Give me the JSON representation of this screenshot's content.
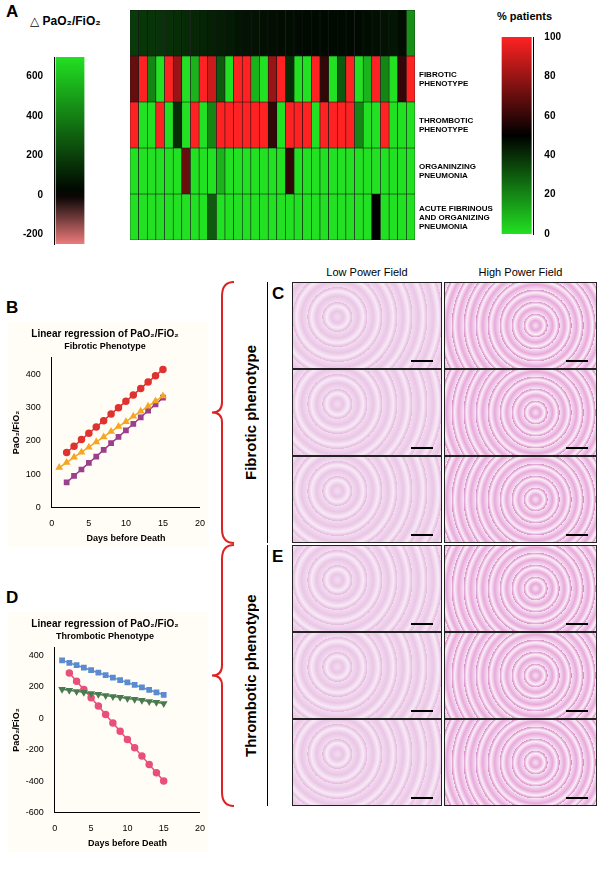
{
  "chart_data": [
    {
      "type": "heatmap",
      "panel": "A",
      "delta_row": {
        "label": "△ PaO₂/FiO₂",
        "values": [
          180,
          170,
          165,
          160,
          150,
          140,
          130,
          120,
          110,
          100,
          90,
          80,
          70,
          60,
          55,
          50,
          45,
          40,
          40,
          35,
          30,
          30,
          30,
          30,
          30,
          30,
          30,
          40,
          50,
          60,
          70,
          40,
          450
        ]
      },
      "rows": [
        {
          "label": "FIBROTIC PHENOTYPE",
          "values": [
            70,
            100,
            20,
            0,
            100,
            80,
            0,
            10,
            100,
            90,
            30,
            0,
            100,
            100,
            10,
            0,
            80,
            100,
            40,
            0,
            0,
            100,
            60,
            0,
            30,
            100,
            0,
            10,
            100,
            20,
            0,
            60,
            100
          ]
        },
        {
          "label": "THROMBOTIC PHENOTYPE",
          "values": [
            100,
            0,
            0,
            100,
            0,
            40,
            0,
            100,
            0,
            20,
            100,
            100,
            100,
            100,
            100,
            100,
            60,
            0,
            100,
            100,
            100,
            0,
            100,
            100,
            100,
            100,
            20,
            0,
            0,
            100,
            0,
            0,
            0
          ]
        },
        {
          "label": "ORGANINZING PNEUMONIA",
          "values": [
            0,
            0,
            0,
            0,
            0,
            0,
            70,
            0,
            0,
            0,
            10,
            0,
            0,
            0,
            0,
            0,
            0,
            0,
            60,
            0,
            0,
            0,
            0,
            0,
            0,
            0,
            0,
            0,
            0,
            0,
            0,
            0,
            0
          ]
        },
        {
          "label": "ACUTE FIBRINOUS AND ORGANIZING PNEUMONIA",
          "values": [
            0,
            0,
            0,
            0,
            0,
            0,
            0,
            0,
            0,
            30,
            0,
            0,
            0,
            0,
            0,
            0,
            0,
            0,
            0,
            0,
            0,
            0,
            0,
            0,
            0,
            0,
            0,
            0,
            50,
            0,
            0,
            0,
            0
          ]
        }
      ],
      "delta_colorbar": {
        "range": [
          -250,
          700
        ],
        "ticks": [
          600,
          400,
          200,
          0,
          -200
        ],
        "center": 0
      },
      "percent_colorbar": {
        "title": "% patients",
        "range": [
          0,
          100
        ],
        "ticks": [
          100,
          80,
          60,
          40,
          20,
          0
        ],
        "center": 50
      }
    },
    {
      "type": "line",
      "panel": "B",
      "title": "Linear regression of PaO₂/FiO₂",
      "subtitle": "Fibrotic Phenotype",
      "x_label": "Days before Death",
      "y_label": "PaO₂/FiO₂",
      "xlim": [
        0,
        20
      ],
      "xticks": [
        0,
        5,
        10,
        15,
        20
      ],
      "ylim": [
        0,
        450
      ],
      "yticks": [
        0,
        100,
        200,
        300,
        400
      ],
      "grid": false,
      "series": [
        {
          "color": "#e0322f",
          "marker": "circle",
          "line_style": "solid",
          "x": [
            2,
            3,
            4,
            5,
            6,
            7,
            8,
            9,
            10,
            11,
            12,
            13,
            14,
            15
          ],
          "values": [
            165,
            184,
            204,
            223,
            242,
            261,
            281,
            300,
            319,
            338,
            358,
            377,
            396,
            415
          ]
        },
        {
          "color": "#f5a623",
          "marker": "triangle",
          "line_style": "solid",
          "x": [
            1,
            2,
            3,
            4,
            5,
            6,
            7,
            8,
            9,
            10,
            11,
            12,
            13,
            14,
            15
          ],
          "values": [
            120,
            135,
            151,
            166,
            181,
            197,
            212,
            228,
            243,
            258,
            274,
            289,
            304,
            320,
            335
          ]
        },
        {
          "color": "#9c3f8c",
          "marker": "square",
          "line_style": "solid",
          "x": [
            2,
            3,
            4,
            5,
            6,
            7,
            8,
            9,
            10,
            11,
            12,
            13,
            14,
            15
          ],
          "values": [
            75,
            95,
            114,
            134,
            153,
            173,
            193,
            212,
            232,
            251,
            271,
            291,
            310,
            330
          ]
        }
      ]
    },
    {
      "type": "line",
      "panel": "D",
      "title": "Linear regression of PaO₂/FiO₂",
      "subtitle": "Thrombotic Phenotype",
      "x_label": "Days before Death",
      "y_label": "PaO₂/FiO₂",
      "xlim": [
        0,
        20
      ],
      "xticks": [
        0,
        5,
        10,
        15,
        20
      ],
      "ylim": [
        -600,
        450
      ],
      "yticks": [
        -600,
        -400,
        -200,
        0,
        200,
        400
      ],
      "grid": false,
      "series": [
        {
          "color": "#5b8bd0",
          "marker": "square",
          "line_style": "solid",
          "x": [
            1,
            2,
            3,
            4,
            5,
            6,
            7,
            8,
            9,
            10,
            11,
            12,
            13,
            14,
            15
          ],
          "values": [
            370,
            354,
            339,
            323,
            307,
            291,
            276,
            260,
            244,
            229,
            213,
            197,
            181,
            166,
            150
          ]
        },
        {
          "color": "#4a7a50",
          "marker": "triangle-down",
          "line_style": "solid",
          "x": [
            1,
            2,
            3,
            4,
            5,
            6,
            7,
            8,
            9,
            10,
            11,
            12,
            13,
            14,
            15
          ],
          "values": [
            185,
            179,
            172,
            166,
            159,
            153,
            146,
            140,
            134,
            127,
            121,
            115,
            108,
            102,
            95
          ]
        },
        {
          "color": "#e8507a",
          "marker": "circle",
          "line_style": "solid",
          "x": [
            2,
            3,
            4,
            5,
            6,
            7,
            8,
            9,
            10,
            11,
            12,
            13,
            14,
            15
          ],
          "values": [
            290,
            237,
            184,
            131,
            78,
            24,
            -29,
            -82,
            -135,
            -188,
            -241,
            -294,
            -347,
            -400
          ]
        }
      ]
    }
  ],
  "histology": {
    "columns": [
      "Low Power Field",
      "High Power Field"
    ],
    "groups": [
      {
        "panel": "C",
        "label": "Fibrotic phenotype",
        "images": 3
      },
      {
        "panel": "E",
        "label": "Thrombotic phenotype",
        "images": 3
      }
    ]
  }
}
